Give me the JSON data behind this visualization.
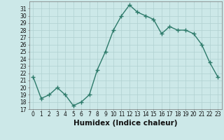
{
  "x": [
    0,
    1,
    2,
    3,
    4,
    5,
    6,
    7,
    8,
    9,
    10,
    11,
    12,
    13,
    14,
    15,
    16,
    17,
    18,
    19,
    20,
    21,
    22,
    23
  ],
  "y": [
    21.5,
    18.5,
    19.0,
    20.0,
    19.0,
    17.5,
    18.0,
    19.0,
    22.5,
    25.0,
    28.0,
    30.0,
    31.5,
    30.5,
    30.0,
    29.5,
    27.5,
    28.5,
    28.0,
    28.0,
    27.5,
    26.0,
    23.5,
    21.5
  ],
  "line_color": "#2d7a6a",
  "marker": "+",
  "markersize": 4,
  "linewidth": 1.0,
  "bg_color": "#cce8e8",
  "grid_color": "#b0d0d0",
  "xlabel": "Humidex (Indice chaleur)",
  "xlim": [
    -0.5,
    23.5
  ],
  "ylim": [
    17,
    32
  ],
  "yticks": [
    17,
    18,
    19,
    20,
    21,
    22,
    23,
    24,
    25,
    26,
    27,
    28,
    29,
    30,
    31
  ],
  "xticks": [
    0,
    1,
    2,
    3,
    4,
    5,
    6,
    7,
    8,
    9,
    10,
    11,
    12,
    13,
    14,
    15,
    16,
    17,
    18,
    19,
    20,
    21,
    22,
    23
  ],
  "tick_fontsize": 5.5,
  "xlabel_fontsize": 7.5,
  "tick_color": "#111111"
}
